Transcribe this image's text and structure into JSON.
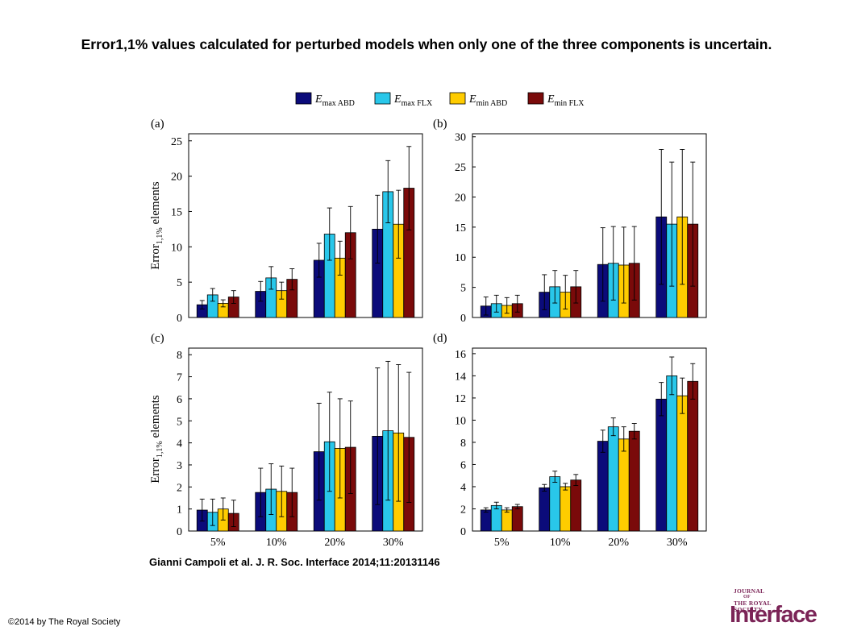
{
  "title": "Error1,1% values calculated for perturbed models when only one of the three components is uncertain.",
  "citation": "Gianni Campoli et al. J. R. Soc. Interface 2014;11:20131146",
  "copyright": "©2014 by The Royal Society",
  "logo": {
    "line1": "JOURNAL",
    "line2": "OF",
    "line3": "THE ROYAL",
    "line4": "SOCIETY",
    "word": "Interface"
  },
  "chart_data": [
    {
      "type": "bar",
      "panel_label": "(a)",
      "categories": [
        "5%",
        "10%",
        "20%",
        "30%"
      ],
      "ylabel": "Error1,1% elements",
      "ylim": [
        0,
        26
      ],
      "yticks": [
        "0",
        "5",
        "10",
        "15",
        "20",
        "25"
      ],
      "series": [
        {
          "name": "Emax ABD",
          "values": [
            1.8,
            3.7,
            8.1,
            12.5
          ],
          "errors": [
            0.6,
            1.4,
            2.4,
            4.8
          ]
        },
        {
          "name": "Emax FLX",
          "values": [
            3.2,
            5.6,
            11.8,
            17.8
          ],
          "errors": [
            0.9,
            1.6,
            3.7,
            4.4
          ]
        },
        {
          "name": "Emin ABD",
          "values": [
            2.0,
            3.8,
            8.4,
            13.2
          ],
          "errors": [
            0.5,
            1.2,
            2.4,
            4.8
          ]
        },
        {
          "name": "Emin FLX",
          "values": [
            2.9,
            5.4,
            12.0,
            18.3
          ],
          "errors": [
            0.9,
            1.5,
            3.7,
            5.9
          ]
        }
      ]
    },
    {
      "type": "bar",
      "panel_label": "(b)",
      "categories": [
        "5%",
        "10%",
        "20%",
        "30%"
      ],
      "ylabel": "",
      "ylim": [
        0,
        30.5
      ],
      "yticks": [
        "0",
        "5",
        "10",
        "15",
        "20",
        "25",
        "30"
      ],
      "series": [
        {
          "name": "Emax ABD",
          "values": [
            1.9,
            4.2,
            8.8,
            16.7
          ],
          "errors": [
            1.5,
            2.9,
            6.1,
            11.2
          ]
        },
        {
          "name": "Emax FLX",
          "values": [
            2.3,
            5.1,
            9.0,
            15.5
          ],
          "errors": [
            1.4,
            2.7,
            6.1,
            10.3
          ]
        },
        {
          "name": "Emin ABD",
          "values": [
            2.0,
            4.2,
            8.7,
            16.7
          ],
          "errors": [
            1.3,
            2.8,
            6.3,
            11.2
          ]
        },
        {
          "name": "Emin FLX",
          "values": [
            2.3,
            5.1,
            9.0,
            15.5
          ],
          "errors": [
            1.4,
            2.7,
            6.1,
            10.3
          ]
        }
      ]
    },
    {
      "type": "bar",
      "panel_label": "(c)",
      "categories": [
        "5%",
        "10%",
        "20%",
        "30%"
      ],
      "xlabel": "",
      "ylabel": "Error1,1% elements",
      "ylim": [
        0,
        8.3
      ],
      "yticks": [
        "0",
        "1",
        "2",
        "3",
        "4",
        "5",
        "6",
        "7",
        "8"
      ],
      "series": [
        {
          "name": "Emax ABD",
          "values": [
            0.95,
            1.75,
            3.6,
            4.3
          ],
          "errors": [
            0.5,
            1.1,
            2.2,
            3.1
          ]
        },
        {
          "name": "Emax FLX",
          "values": [
            0.85,
            1.9,
            4.05,
            4.55
          ],
          "errors": [
            0.6,
            1.15,
            2.25,
            3.15
          ]
        },
        {
          "name": "Emin ABD",
          "values": [
            1.0,
            1.8,
            3.75,
            4.45
          ],
          "errors": [
            0.5,
            1.15,
            2.25,
            3.1
          ]
        },
        {
          "name": "Emin FLX",
          "values": [
            0.8,
            1.75,
            3.8,
            4.25
          ],
          "errors": [
            0.6,
            1.1,
            2.1,
            2.95
          ]
        }
      ]
    },
    {
      "type": "bar",
      "panel_label": "(d)",
      "categories": [
        "5%",
        "10%",
        "20%",
        "30%"
      ],
      "xlabel": "",
      "ylabel": "",
      "ylim": [
        0,
        16.5
      ],
      "yticks": [
        "0",
        "2",
        "4",
        "6",
        "8",
        "10",
        "12",
        "14",
        "16"
      ],
      "series": [
        {
          "name": "Emax ABD",
          "values": [
            1.9,
            3.9,
            8.1,
            11.9
          ],
          "errors": [
            0.2,
            0.3,
            1.0,
            1.5
          ]
        },
        {
          "name": "Emax FLX",
          "values": [
            2.3,
            4.9,
            9.4,
            14.0
          ],
          "errors": [
            0.3,
            0.5,
            0.8,
            1.7
          ]
        },
        {
          "name": "Emin ABD",
          "values": [
            1.9,
            4.0,
            8.3,
            12.2
          ],
          "errors": [
            0.2,
            0.3,
            1.1,
            1.6
          ]
        },
        {
          "name": "Emin FLX",
          "values": [
            2.2,
            4.6,
            9.0,
            13.5
          ],
          "errors": [
            0.2,
            0.5,
            0.7,
            1.6
          ]
        }
      ]
    }
  ],
  "legend": [
    {
      "main": "E",
      "sub": "max ABD",
      "color": "#0b0b7a"
    },
    {
      "main": "E",
      "sub": "max FLX",
      "color": "#29c7ea"
    },
    {
      "main": "E",
      "sub": "min ABD",
      "color": "#ffcc00"
    },
    {
      "main": "E",
      "sub": "min FLX",
      "color": "#7a0a0a"
    }
  ]
}
